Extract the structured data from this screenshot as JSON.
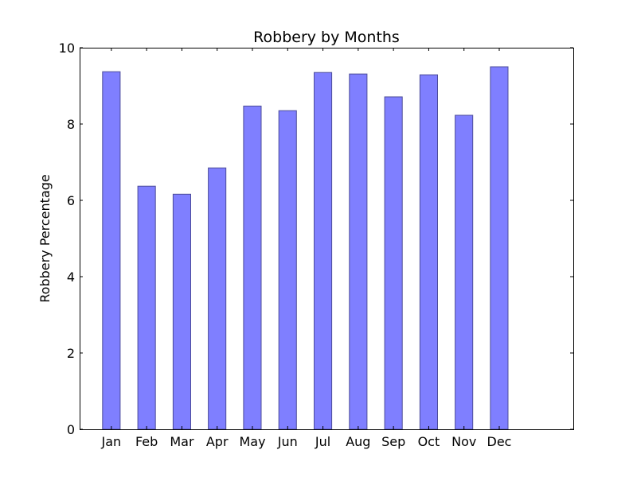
{
  "chart_data": {
    "type": "bar",
    "title": "Robbery by Months",
    "xlabel": "",
    "ylabel": "Robbery Percentage",
    "categories": [
      "Jan",
      "Feb",
      "Mar",
      "Apr",
      "May",
      "Jun",
      "Jul",
      "Aug",
      "Sep",
      "Oct",
      "Nov",
      "Dec"
    ],
    "values": [
      9.37,
      6.37,
      6.16,
      6.85,
      8.47,
      8.35,
      9.35,
      9.31,
      8.71,
      9.29,
      8.23,
      9.5
    ],
    "ylim": [
      0,
      10
    ],
    "yticks": [
      "0",
      "2",
      "4",
      "6",
      "8",
      "10"
    ],
    "grid": false,
    "colors": {
      "bar_fill": "#7f7fff",
      "bar_edge": "#4c4c99"
    }
  }
}
